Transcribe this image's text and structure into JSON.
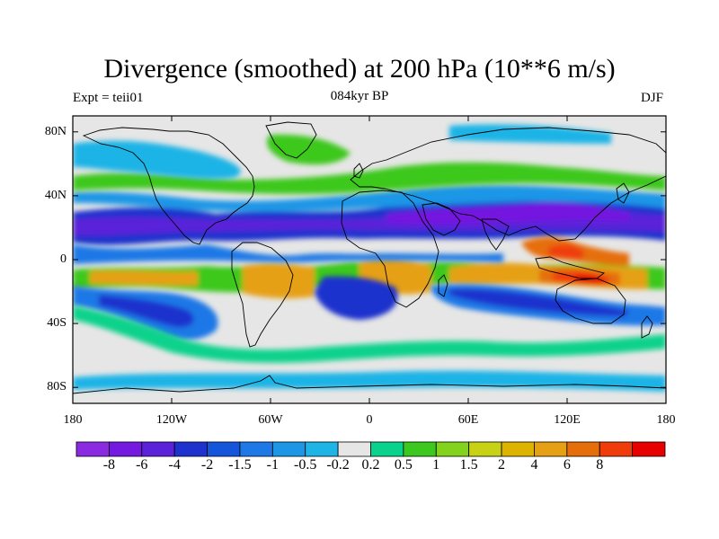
{
  "title": "Divergence (smoothed) at 200 hPa (10**6 m/s)",
  "left_label": "Expt = teii01",
  "center_label": "084kyr BP",
  "right_label": "DJF",
  "lat_ticks": [
    {
      "label": "80N",
      "lat": 80
    },
    {
      "label": "40N",
      "lat": 40
    },
    {
      "label": "0",
      "lat": 0
    },
    {
      "label": "40S",
      "lat": -40
    },
    {
      "label": "80S",
      "lat": -80
    }
  ],
  "lon_ticks": [
    {
      "label": "180",
      "lon": -180
    },
    {
      "label": "120W",
      "lon": -120
    },
    {
      "label": "60W",
      "lon": -60
    },
    {
      "label": "0",
      "lon": 0
    },
    {
      "label": "60E",
      "lon": 60
    },
    {
      "label": "120E",
      "lon": 120
    },
    {
      "label": "180",
      "lon": 180
    }
  ],
  "colorbar": {
    "colors": [
      "#8a2be2",
      "#7419e0",
      "#5a23d9",
      "#1e32cd",
      "#1455dc",
      "#1e78e6",
      "#1e96e6",
      "#1eb4e6",
      "#e6e6e6",
      "#0ad28c",
      "#3cc81e",
      "#82d21e",
      "#c8d214",
      "#dcb400",
      "#e6a014",
      "#e66e0a",
      "#ef3c0a",
      "#e60000"
    ],
    "labels": [
      "-8",
      "-6",
      "-4",
      "-2",
      "-1.5",
      "-1",
      "-0.5",
      "-0.2",
      "0.2",
      "0.5",
      "1",
      "1.5",
      "2",
      "4",
      "6",
      "8"
    ]
  }
}
